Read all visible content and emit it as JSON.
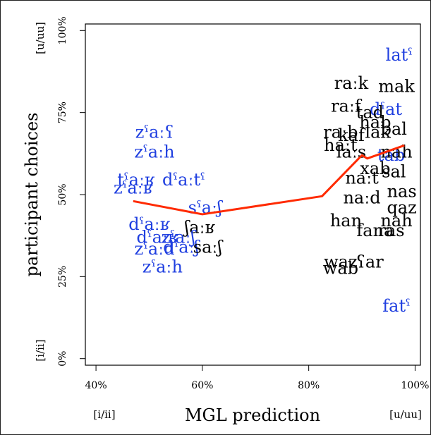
{
  "chart_data": {
    "type": "scatter",
    "xlabel": "MGL prediction",
    "ylabel": "participant choices",
    "xlim": [
      0.38,
      1.01
    ],
    "ylim": [
      -0.02,
      1.02
    ],
    "grid": false,
    "x_ticks": [
      {
        "value": 0.4,
        "label": "40%"
      },
      {
        "value": 0.6,
        "label": "60%"
      },
      {
        "value": 0.8,
        "label": "80%"
      },
      {
        "value": 1.0,
        "label": "100%"
      }
    ],
    "y_ticks": [
      {
        "value": 0.0,
        "label": "0%"
      },
      {
        "value": 0.25,
        "label": "25%"
      },
      {
        "value": 0.5,
        "label": "50%"
      },
      {
        "value": 0.75,
        "label": "75%"
      },
      {
        "value": 1.0,
        "label": "100%"
      }
    ],
    "x_end_labels": {
      "left": "[i/ii]",
      "right": "[u/uu]"
    },
    "y_end_labels": {
      "bottom": "[i/ii]",
      "top": "[u/uu]"
    },
    "colors": {
      "blue": "#1f3fe0",
      "black": "#000000",
      "line": "#ff2a00"
    },
    "points": [
      {
        "label": "latˤ",
        "x": 0.97,
        "y": 0.925,
        "color": "blue"
      },
      {
        "label": "raːk",
        "x": 0.88,
        "y": 0.84,
        "color": "black"
      },
      {
        "label": "mak",
        "x": 0.965,
        "y": 0.83,
        "color": "black"
      },
      {
        "label": "raːf",
        "x": 0.87,
        "y": 0.77,
        "color": "black"
      },
      {
        "label": "dˤat",
        "x": 0.945,
        "y": 0.76,
        "color": "blue"
      },
      {
        "label": "tad",
        "x": 0.915,
        "y": 0.75,
        "color": "black"
      },
      {
        "label": "hab",
        "x": 0.925,
        "y": 0.72,
        "color": "black"
      },
      {
        "label": "raːb",
        "x": 0.86,
        "y": 0.69,
        "color": "black"
      },
      {
        "label": "kaf",
        "x": 0.88,
        "y": 0.68,
        "color": "black"
      },
      {
        "label": "lak",
        "x": 0.93,
        "y": 0.69,
        "color": "black"
      },
      {
        "label": "bal",
        "x": 0.96,
        "y": 0.7,
        "color": "black"
      },
      {
        "label": "haːt",
        "x": 0.86,
        "y": 0.65,
        "color": "black"
      },
      {
        "label": "laːs",
        "x": 0.88,
        "y": 0.63,
        "color": "black"
      },
      {
        "label": "tab",
        "x": 0.955,
        "y": 0.62,
        "color": "blue"
      },
      {
        "label": "nah",
        "x": 0.965,
        "y": 0.63,
        "color": "black"
      },
      {
        "label": "xab",
        "x": 0.925,
        "y": 0.58,
        "color": "black"
      },
      {
        "label": "sal",
        "x": 0.96,
        "y": 0.57,
        "color": "black"
      },
      {
        "label": "naːt",
        "x": 0.9,
        "y": 0.55,
        "color": "black"
      },
      {
        "label": "nas",
        "x": 0.975,
        "y": 0.51,
        "color": "black"
      },
      {
        "label": "naːd",
        "x": 0.9,
        "y": 0.49,
        "color": "black"
      },
      {
        "label": "qaz",
        "x": 0.975,
        "y": 0.46,
        "color": "black"
      },
      {
        "label": "han",
        "x": 0.87,
        "y": 0.42,
        "color": "black"
      },
      {
        "label": "nah",
        "x": 0.965,
        "y": 0.42,
        "color": "black"
      },
      {
        "label": "fana",
        "x": 0.925,
        "y": 0.39,
        "color": "black"
      },
      {
        "label": "ras",
        "x": 0.955,
        "y": 0.39,
        "color": "black"
      },
      {
        "label": "waz",
        "x": 0.86,
        "y": 0.295,
        "color": "black"
      },
      {
        "label": "ʕar",
        "x": 0.915,
        "y": 0.295,
        "color": "black"
      },
      {
        "label": "wab",
        "x": 0.86,
        "y": 0.275,
        "color": "black"
      },
      {
        "label": "fatˤ",
        "x": 0.965,
        "y": 0.16,
        "color": "blue"
      },
      {
        "label": "zˤaːʕ",
        "x": 0.51,
        "y": 0.69,
        "color": "blue"
      },
      {
        "label": "zˤaːh",
        "x": 0.51,
        "y": 0.63,
        "color": "blue"
      },
      {
        "label": "tˤaːʁ",
        "x": 0.475,
        "y": 0.545,
        "color": "blue"
      },
      {
        "label": "dˤaːtˤ",
        "x": 0.565,
        "y": 0.545,
        "color": "blue"
      },
      {
        "label": "zˤaːʁ",
        "x": 0.47,
        "y": 0.52,
        "color": "blue"
      },
      {
        "label": "sˤaːʃ",
        "x": 0.605,
        "y": 0.46,
        "color": "blue"
      },
      {
        "label": "dˤaːʁ",
        "x": 0.5,
        "y": 0.41,
        "color": "blue"
      },
      {
        "label": "ʃaːʁ",
        "x": 0.595,
        "y": 0.4,
        "color": "black"
      },
      {
        "label": "dˤaːʁ",
        "x": 0.515,
        "y": 0.37,
        "color": "blue"
      },
      {
        "label": "zˤaːʃ",
        "x": 0.555,
        "y": 0.37,
        "color": "blue"
      },
      {
        "label": "zˤaːd",
        "x": 0.51,
        "y": 0.335,
        "color": "blue"
      },
      {
        "label": "dˤaːʃ",
        "x": 0.56,
        "y": 0.34,
        "color": "blue"
      },
      {
        "label": "saːʃ",
        "x": 0.61,
        "y": 0.34,
        "color": "black"
      },
      {
        "label": "zˤaːh",
        "x": 0.525,
        "y": 0.28,
        "color": "blue"
      }
    ],
    "trend_line": {
      "x": [
        0.47,
        0.6,
        0.825,
        0.9,
        0.91,
        0.98
      ],
      "y": [
        0.48,
        0.44,
        0.495,
        0.62,
        0.61,
        0.65
      ]
    }
  }
}
